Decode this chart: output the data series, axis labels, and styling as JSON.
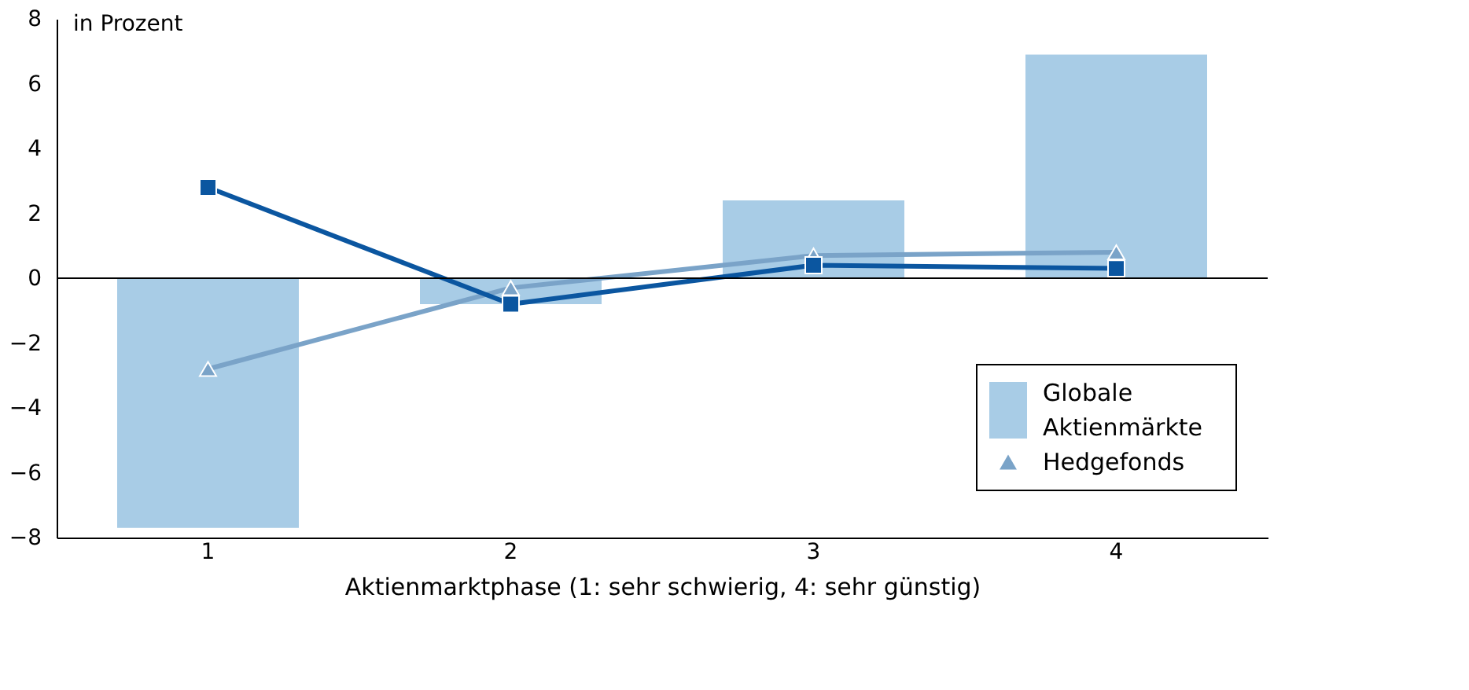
{
  "chart_data": {
    "type": "bar",
    "ylabel": "in Prozent",
    "xlabel": "Aktienmarktphase (1: sehr schwierig, 4: sehr günstig)",
    "categories": [
      "1",
      "2",
      "3",
      "4"
    ],
    "series": [
      {
        "name": "Globale Aktienmärkte",
        "color": "#a8cce6",
        "values": [
          -7.7,
          -0.8,
          2.4,
          6.9
        ]
      },
      {
        "name": "Hedgefonds",
        "type": "line",
        "marker": "triangle",
        "color": "#7aa3c8",
        "values": [
          -2.8,
          -0.3,
          0.7,
          0.8
        ]
      },
      {
        "type": "line",
        "marker": "square",
        "color": "#0b56a0",
        "values": [
          2.8,
          -0.8,
          0.4,
          0.3
        ]
      }
    ],
    "ylim": [
      -8,
      8
    ],
    "yticks": [
      -8,
      -6,
      -4,
      -2,
      0,
      2,
      4,
      6,
      8
    ],
    "ref_lines": [
      {
        "axis": "y",
        "value": 0,
        "color": "#000000"
      }
    ],
    "legend": "bottom right"
  }
}
